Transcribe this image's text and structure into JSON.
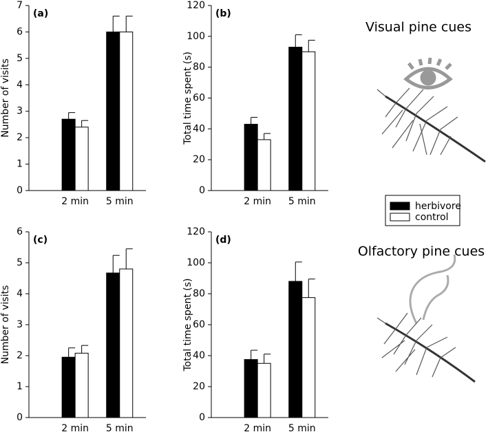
{
  "chart_data": [
    {
      "type": "bar",
      "title": "(a)",
      "y_label": "Number of visits",
      "categories": [
        "2 min",
        "5 min"
      ],
      "series": [
        {
          "name": "herbivore",
          "color": "#000000",
          "values": [
            2.7,
            6.0
          ],
          "errors": [
            0.25,
            0.6
          ]
        },
        {
          "name": "control",
          "color": "#ffffff",
          "values": [
            2.4,
            6.0
          ],
          "errors": [
            0.25,
            0.6
          ]
        }
      ],
      "ylim": [
        0,
        7
      ],
      "yticks": [
        0,
        1,
        2,
        3,
        4,
        5,
        6,
        7
      ]
    },
    {
      "type": "bar",
      "title": "(b)",
      "y_label": "Total time spent (s)",
      "annotation": "Visual pine cues",
      "categories": [
        "2 min",
        "5 min"
      ],
      "series": [
        {
          "name": "herbivore",
          "color": "#000000",
          "values": [
            43,
            93
          ],
          "errors": [
            4.5,
            8
          ]
        },
        {
          "name": "control",
          "color": "#ffffff",
          "values": [
            33,
            90
          ],
          "errors": [
            4,
            7.5
          ]
        }
      ],
      "ylim": [
        0,
        120
      ],
      "yticks": [
        0,
        20,
        40,
        60,
        80,
        100,
        120
      ]
    },
    {
      "type": "bar",
      "title": "(c)",
      "y_label": "Number of visits",
      "categories": [
        "2 min",
        "5 min"
      ],
      "series": [
        {
          "name": "herbivore",
          "color": "#000000",
          "values": [
            1.95,
            4.67
          ],
          "errors": [
            0.3,
            0.57
          ]
        },
        {
          "name": "control",
          "color": "#ffffff",
          "values": [
            2.08,
            4.8
          ],
          "errors": [
            0.25,
            0.65
          ]
        }
      ],
      "ylim": [
        0,
        6
      ],
      "yticks": [
        0,
        1,
        2,
        3,
        4,
        5,
        6
      ]
    },
    {
      "type": "bar",
      "title": "(d)",
      "y_label": "Total time spent (s)",
      "annotation": "Olfactory pine cues",
      "categories": [
        "2 min",
        "5 min"
      ],
      "series": [
        {
          "name": "herbivore",
          "color": "#000000",
          "values": [
            37.5,
            88
          ],
          "errors": [
            6,
            12.5
          ]
        },
        {
          "name": "control",
          "color": "#ffffff",
          "values": [
            35,
            77.5
          ],
          "errors": [
            6,
            12
          ]
        }
      ],
      "ylim": [
        0,
        120
      ],
      "yticks": [
        0,
        20,
        40,
        60,
        80,
        100,
        120
      ]
    }
  ]
}
